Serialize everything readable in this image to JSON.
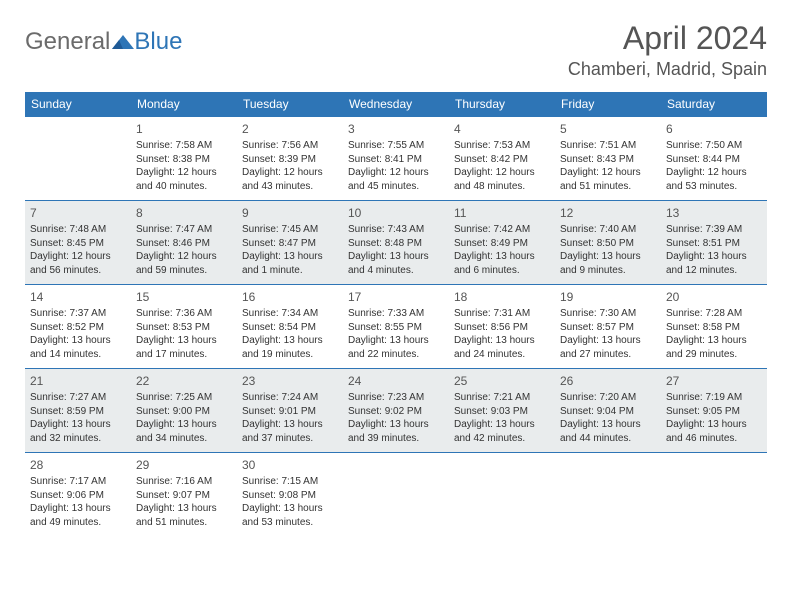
{
  "logo": {
    "text1": "General",
    "text2": "Blue"
  },
  "title": "April 2024",
  "location": "Chamberi, Madrid, Spain",
  "header_bg": "#2e75b6",
  "days_of_week": [
    "Sunday",
    "Monday",
    "Tuesday",
    "Wednesday",
    "Thursday",
    "Friday",
    "Saturday"
  ],
  "weeks": [
    [
      null,
      {
        "n": "1",
        "sr": "Sunrise: 7:58 AM",
        "ss": "Sunset: 8:38 PM",
        "dl": "Daylight: 12 hours and 40 minutes."
      },
      {
        "n": "2",
        "sr": "Sunrise: 7:56 AM",
        "ss": "Sunset: 8:39 PM",
        "dl": "Daylight: 12 hours and 43 minutes."
      },
      {
        "n": "3",
        "sr": "Sunrise: 7:55 AM",
        "ss": "Sunset: 8:41 PM",
        "dl": "Daylight: 12 hours and 45 minutes."
      },
      {
        "n": "4",
        "sr": "Sunrise: 7:53 AM",
        "ss": "Sunset: 8:42 PM",
        "dl": "Daylight: 12 hours and 48 minutes."
      },
      {
        "n": "5",
        "sr": "Sunrise: 7:51 AM",
        "ss": "Sunset: 8:43 PM",
        "dl": "Daylight: 12 hours and 51 minutes."
      },
      {
        "n": "6",
        "sr": "Sunrise: 7:50 AM",
        "ss": "Sunset: 8:44 PM",
        "dl": "Daylight: 12 hours and 53 minutes."
      }
    ],
    [
      {
        "n": "7",
        "sr": "Sunrise: 7:48 AM",
        "ss": "Sunset: 8:45 PM",
        "dl": "Daylight: 12 hours and 56 minutes."
      },
      {
        "n": "8",
        "sr": "Sunrise: 7:47 AM",
        "ss": "Sunset: 8:46 PM",
        "dl": "Daylight: 12 hours and 59 minutes."
      },
      {
        "n": "9",
        "sr": "Sunrise: 7:45 AM",
        "ss": "Sunset: 8:47 PM",
        "dl": "Daylight: 13 hours and 1 minute."
      },
      {
        "n": "10",
        "sr": "Sunrise: 7:43 AM",
        "ss": "Sunset: 8:48 PM",
        "dl": "Daylight: 13 hours and 4 minutes."
      },
      {
        "n": "11",
        "sr": "Sunrise: 7:42 AM",
        "ss": "Sunset: 8:49 PM",
        "dl": "Daylight: 13 hours and 6 minutes."
      },
      {
        "n": "12",
        "sr": "Sunrise: 7:40 AM",
        "ss": "Sunset: 8:50 PM",
        "dl": "Daylight: 13 hours and 9 minutes."
      },
      {
        "n": "13",
        "sr": "Sunrise: 7:39 AM",
        "ss": "Sunset: 8:51 PM",
        "dl": "Daylight: 13 hours and 12 minutes."
      }
    ],
    [
      {
        "n": "14",
        "sr": "Sunrise: 7:37 AM",
        "ss": "Sunset: 8:52 PM",
        "dl": "Daylight: 13 hours and 14 minutes."
      },
      {
        "n": "15",
        "sr": "Sunrise: 7:36 AM",
        "ss": "Sunset: 8:53 PM",
        "dl": "Daylight: 13 hours and 17 minutes."
      },
      {
        "n": "16",
        "sr": "Sunrise: 7:34 AM",
        "ss": "Sunset: 8:54 PM",
        "dl": "Daylight: 13 hours and 19 minutes."
      },
      {
        "n": "17",
        "sr": "Sunrise: 7:33 AM",
        "ss": "Sunset: 8:55 PM",
        "dl": "Daylight: 13 hours and 22 minutes."
      },
      {
        "n": "18",
        "sr": "Sunrise: 7:31 AM",
        "ss": "Sunset: 8:56 PM",
        "dl": "Daylight: 13 hours and 24 minutes."
      },
      {
        "n": "19",
        "sr": "Sunrise: 7:30 AM",
        "ss": "Sunset: 8:57 PM",
        "dl": "Daylight: 13 hours and 27 minutes."
      },
      {
        "n": "20",
        "sr": "Sunrise: 7:28 AM",
        "ss": "Sunset: 8:58 PM",
        "dl": "Daylight: 13 hours and 29 minutes."
      }
    ],
    [
      {
        "n": "21",
        "sr": "Sunrise: 7:27 AM",
        "ss": "Sunset: 8:59 PM",
        "dl": "Daylight: 13 hours and 32 minutes."
      },
      {
        "n": "22",
        "sr": "Sunrise: 7:25 AM",
        "ss": "Sunset: 9:00 PM",
        "dl": "Daylight: 13 hours and 34 minutes."
      },
      {
        "n": "23",
        "sr": "Sunrise: 7:24 AM",
        "ss": "Sunset: 9:01 PM",
        "dl": "Daylight: 13 hours and 37 minutes."
      },
      {
        "n": "24",
        "sr": "Sunrise: 7:23 AM",
        "ss": "Sunset: 9:02 PM",
        "dl": "Daylight: 13 hours and 39 minutes."
      },
      {
        "n": "25",
        "sr": "Sunrise: 7:21 AM",
        "ss": "Sunset: 9:03 PM",
        "dl": "Daylight: 13 hours and 42 minutes."
      },
      {
        "n": "26",
        "sr": "Sunrise: 7:20 AM",
        "ss": "Sunset: 9:04 PM",
        "dl": "Daylight: 13 hours and 44 minutes."
      },
      {
        "n": "27",
        "sr": "Sunrise: 7:19 AM",
        "ss": "Sunset: 9:05 PM",
        "dl": "Daylight: 13 hours and 46 minutes."
      }
    ],
    [
      {
        "n": "28",
        "sr": "Sunrise: 7:17 AM",
        "ss": "Sunset: 9:06 PM",
        "dl": "Daylight: 13 hours and 49 minutes."
      },
      {
        "n": "29",
        "sr": "Sunrise: 7:16 AM",
        "ss": "Sunset: 9:07 PM",
        "dl": "Daylight: 13 hours and 51 minutes."
      },
      {
        "n": "30",
        "sr": "Sunrise: 7:15 AM",
        "ss": "Sunset: 9:08 PM",
        "dl": "Daylight: 13 hours and 53 minutes."
      },
      null,
      null,
      null,
      null
    ]
  ]
}
